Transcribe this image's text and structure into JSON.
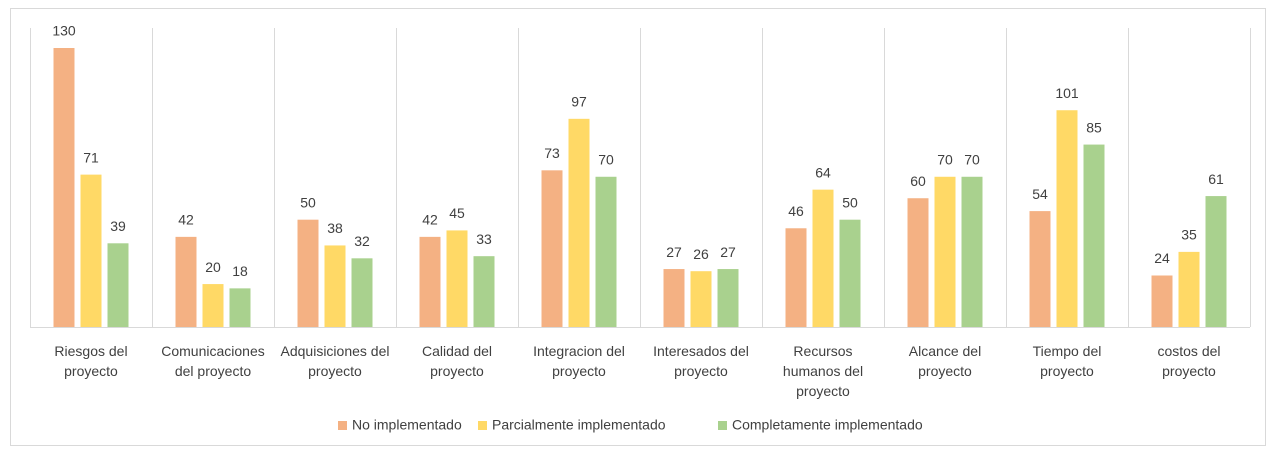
{
  "chart_data": {
    "type": "bar",
    "categories": [
      "Riesgos del proyecto",
      "Comunicaciones del proyecto",
      "Adquisiciones del proyecto",
      "Calidad del proyecto",
      "Integracion del proyecto",
      "Interesados del proyecto",
      "Recursos humanos del proyecto",
      "Alcance del proyecto",
      "Tiempo del proyecto",
      "costos del proyecto"
    ],
    "series": [
      {
        "name": "No implementado",
        "color": "#f4b183",
        "values": [
          130,
          42,
          50,
          42,
          73,
          27,
          46,
          60,
          54,
          24
        ]
      },
      {
        "name": "Parcialmente implementado",
        "color": "#ffd966",
        "values": [
          71,
          20,
          38,
          45,
          97,
          26,
          64,
          70,
          101,
          35
        ]
      },
      {
        "name": "Completamente implementado",
        "color": "#a9d18e",
        "values": [
          39,
          18,
          32,
          33,
          70,
          27,
          50,
          70,
          85,
          61
        ]
      }
    ],
    "legend": "bottom"
  }
}
